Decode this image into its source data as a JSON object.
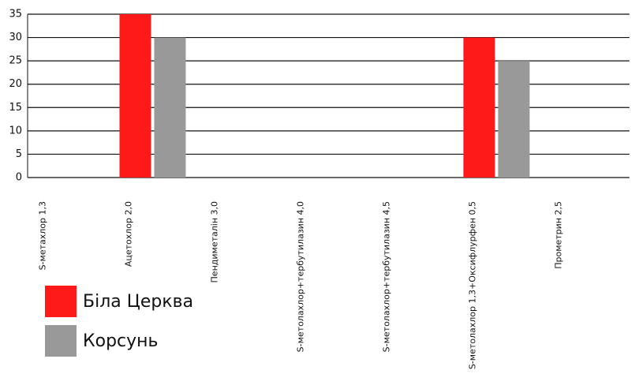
{
  "chart_data": {
    "type": "bar",
    "categories": [
      "S-метахлор 1,3",
      "Ацетохлор 2,0",
      "Пендиметалін 3,0",
      "S-метолахлор+тербутилазин 4,0",
      "S-метолахлор+тербутилазин 4,5",
      "S-метолахлор 1,3+Оксифлурфен 0,5",
      "Прометрин 2,5"
    ],
    "series": [
      {
        "name": "Біла Церква",
        "color": "#ff1a1a",
        "values": [
          0,
          35,
          0,
          0,
          0,
          30,
          0
        ]
      },
      {
        "name": "Корсунь",
        "color": "#999999",
        "values": [
          0,
          30,
          0,
          0,
          0,
          25,
          0
        ]
      }
    ],
    "ylim": [
      0,
      35
    ],
    "yticks": [
      0,
      5,
      10,
      15,
      20,
      25,
      30,
      35
    ],
    "grid": true
  }
}
